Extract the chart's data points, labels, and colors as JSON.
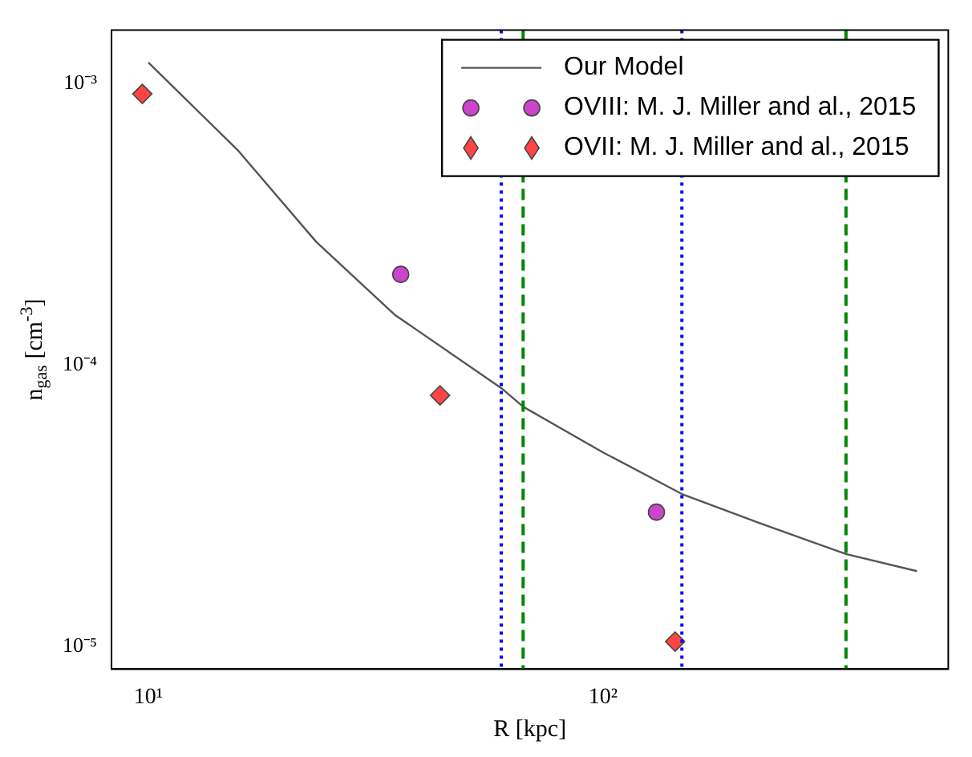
{
  "chart_data": {
    "type": "line",
    "xlabel": "R [kpc]",
    "ylabel": "n$_{gas}$ [cm$^{-3}$]",
    "log": "xy",
    "grid": false,
    "legend": "top right",
    "xlim": [
      8.3,
      574
    ],
    "ylim": [
      8.3e-06,
      0.00155
    ],
    "xticks": [
      {
        "value": 10,
        "label": "10¹"
      },
      {
        "value": 100,
        "label": "10²"
      }
    ],
    "yticks": [
      {
        "value": 1e-05,
        "label": "10⁻⁵"
      },
      {
        "value": 0.0001,
        "label": "10⁻⁴"
      },
      {
        "value": 0.001,
        "label": "10⁻³"
      }
    ],
    "series": [
      {
        "name": "Our Model",
        "type": "line",
        "color": "#555555",
        "marker": "none",
        "line_style": "solid",
        "x": [
          10,
          15.7,
          23.4,
          34.8,
          59.7,
          66.7,
          100,
          149,
          221,
          342,
          490
        ],
        "values": [
          0.00119,
          0.000582,
          0.000274,
          0.000151,
          8.28e-05,
          7.11e-05,
          4.89e-05,
          3.48e-05,
          2.74e-05,
          2.13e-05,
          1.85e-05
        ]
      },
      {
        "name": "OVIII: M. J. Miller and al., 2015",
        "type": "scatter",
        "color": "#cc44cc",
        "marker": "circle",
        "x": [
          35.9,
          131
        ],
        "values": [
          0.00021,
          3e-05
        ]
      },
      {
        "name": "OVII: M. J. Miller and al., 2015",
        "type": "scatter",
        "color": "#ff4444",
        "marker": "diamond",
        "x": [
          9.7,
          43.8,
          144
        ],
        "values": [
          0.00092,
          7.8e-05,
          1.04e-05
        ]
      }
    ],
    "ref_lines": [
      {
        "axis": "x",
        "value": 59.7,
        "color": "#0000ff",
        "line_style": "dotted"
      },
      {
        "axis": "x",
        "value": 149,
        "color": "#0000ff",
        "line_style": "dotted"
      },
      {
        "axis": "x",
        "value": 66.7,
        "color": "#008800",
        "line_style": "dashed"
      },
      {
        "axis": "x",
        "value": 342,
        "color": "#008800",
        "line_style": "dashed"
      }
    ]
  }
}
